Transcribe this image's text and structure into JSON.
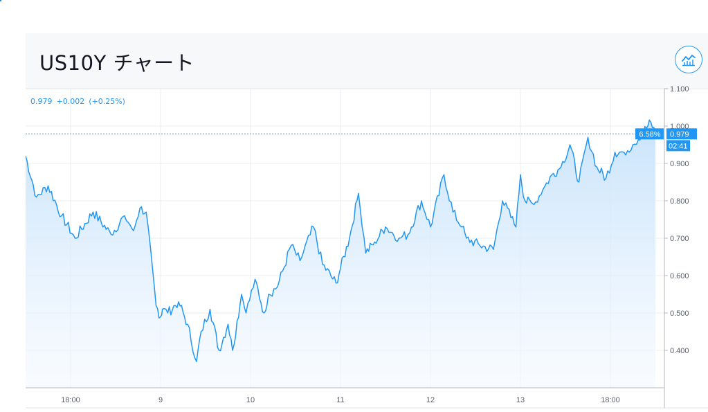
{
  "header": {
    "title": "US10Y チャート",
    "chart_icon": "line-chart-icon"
  },
  "quote": {
    "last": "0.979",
    "change": "+0.002",
    "change_pct": "(+0.25%)"
  },
  "price_label": {
    "percent": "6.58%",
    "price": "0.979",
    "countdown": "02:41"
  },
  "colors": {
    "line": "#2196f3",
    "fill_top": "#c6e2fb",
    "fill_bottom": "#f4f9ff",
    "grid": "#e9ecf1",
    "axis_text": "#5d606b"
  },
  "chart_data": {
    "type": "area",
    "title": "US10Y",
    "ylim": [
      0.3,
      1.1
    ],
    "y_ticks": [
      "0.400",
      "0.500",
      "0.600",
      "0.700",
      "0.800",
      "0.900",
      "1.000",
      "1.100"
    ],
    "x_tick_labels": [
      "18:00",
      "9",
      "10",
      "11",
      "12",
      "13",
      "18:00"
    ],
    "x_tick_pos": [
      0.5,
      1.5,
      2.5,
      3.5,
      4.5,
      5.5,
      6.5
    ],
    "x": [
      0.0,
      0.12,
      0.25,
      0.4,
      0.55,
      0.75,
      0.95,
      1.1,
      1.2,
      1.27,
      1.34,
      1.45,
      1.5,
      1.52,
      1.58,
      1.7,
      1.8,
      1.9,
      1.95,
      2.05,
      2.15,
      2.25,
      2.3,
      2.4,
      2.45,
      2.55,
      2.65,
      2.7,
      2.8,
      2.95,
      3.05,
      3.2,
      3.3,
      3.45,
      3.5,
      3.6,
      3.7,
      3.78,
      3.88,
      4.0,
      4.15,
      4.25,
      4.4,
      4.5,
      4.65,
      4.75,
      4.85,
      4.9,
      5.05,
      5.2,
      5.3,
      5.45,
      5.5,
      5.55,
      5.65,
      5.75,
      5.85,
      5.95,
      6.05,
      6.15,
      6.25,
      6.35,
      6.45,
      6.55,
      6.65,
      6.75,
      6.85,
      6.95,
      7.0
    ],
    "values": [
      0.92,
      0.81,
      0.84,
      0.76,
      0.7,
      0.77,
      0.71,
      0.76,
      0.72,
      0.78,
      0.77,
      0.52,
      0.49,
      0.51,
      0.5,
      0.53,
      0.47,
      0.37,
      0.45,
      0.51,
      0.4,
      0.47,
      0.4,
      0.55,
      0.5,
      0.59,
      0.5,
      0.55,
      0.57,
      0.68,
      0.64,
      0.73,
      0.63,
      0.58,
      0.62,
      0.7,
      0.82,
      0.66,
      0.69,
      0.73,
      0.7,
      0.71,
      0.8,
      0.73,
      0.87,
      0.77,
      0.73,
      0.7,
      0.68,
      0.67,
      0.8,
      0.73,
      0.87,
      0.8,
      0.79,
      0.83,
      0.87,
      0.89,
      0.95,
      0.85,
      0.97,
      0.89,
      0.86,
      0.93,
      0.93,
      0.95,
      0.98,
      1.01,
      0.979
    ],
    "current": 0.979,
    "grid": true
  }
}
